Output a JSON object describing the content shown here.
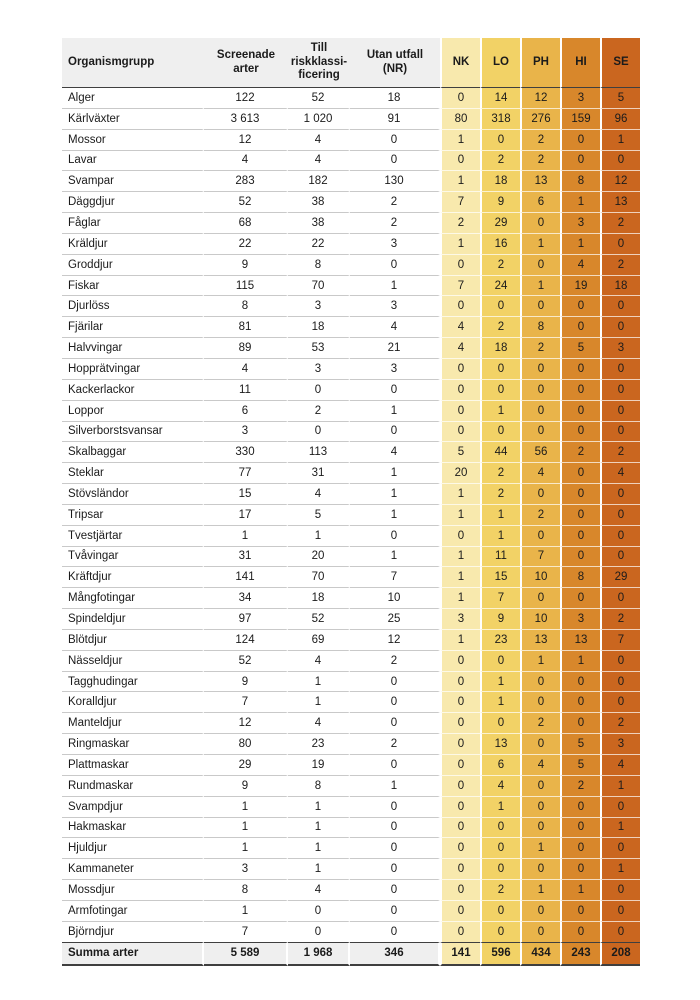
{
  "chart_data": {
    "type": "table",
    "columns": [
      {
        "key": "organismgrupp",
        "label": "Organismgrupp"
      },
      {
        "key": "screenade-arter",
        "label": "Screenade\narter"
      },
      {
        "key": "till-riskklassificering",
        "label": "Till\nriskklassi-\nficering"
      },
      {
        "key": "utan-utfall-nr",
        "label": "Utan utfall\n(NR)"
      },
      {
        "key": "nk",
        "label": "NK",
        "color": "#f8e9ad"
      },
      {
        "key": "lo",
        "label": "LO",
        "color": "#f2d266"
      },
      {
        "key": "ph",
        "label": "PH",
        "color": "#e9b44a"
      },
      {
        "key": "hi",
        "label": "HI",
        "color": "#d8872b"
      },
      {
        "key": "se",
        "label": "SE",
        "color": "#ca661f"
      }
    ],
    "rows": [
      [
        "Alger",
        "122",
        "52",
        "18",
        "0",
        "14",
        "12",
        "3",
        "5"
      ],
      [
        "Kärlväxter",
        "3 613",
        "1 020",
        "91",
        "80",
        "318",
        "276",
        "159",
        "96"
      ],
      [
        "Mossor",
        "12",
        "4",
        "0",
        "1",
        "0",
        "2",
        "0",
        "1"
      ],
      [
        "Lavar",
        "4",
        "4",
        "0",
        "0",
        "2",
        "2",
        "0",
        "0"
      ],
      [
        "Svampar",
        "283",
        "182",
        "130",
        "1",
        "18",
        "13",
        "8",
        "12"
      ],
      [
        "Däggdjur",
        "52",
        "38",
        "2",
        "7",
        "9",
        "6",
        "1",
        "13"
      ],
      [
        "Fåglar",
        "68",
        "38",
        "2",
        "2",
        "29",
        "0",
        "3",
        "2"
      ],
      [
        "Kräldjur",
        "22",
        "22",
        "3",
        "1",
        "16",
        "1",
        "1",
        "0"
      ],
      [
        "Groddjur",
        "9",
        "8",
        "0",
        "0",
        "2",
        "0",
        "4",
        "2"
      ],
      [
        "Fiskar",
        "115",
        "70",
        "1",
        "7",
        "24",
        "1",
        "19",
        "18"
      ],
      [
        "Djurlöss",
        "8",
        "3",
        "3",
        "0",
        "0",
        "0",
        "0",
        "0"
      ],
      [
        "Fjärilar",
        "81",
        "18",
        "4",
        "4",
        "2",
        "8",
        "0",
        "0"
      ],
      [
        "Halvvingar",
        "89",
        "53",
        "21",
        "4",
        "18",
        "2",
        "5",
        "3"
      ],
      [
        "Hopprätvingar",
        "4",
        "3",
        "3",
        "0",
        "0",
        "0",
        "0",
        "0"
      ],
      [
        "Kackerlackor",
        "11",
        "0",
        "0",
        "0",
        "0",
        "0",
        "0",
        "0"
      ],
      [
        "Loppor",
        "6",
        "2",
        "1",
        "0",
        "1",
        "0",
        "0",
        "0"
      ],
      [
        "Silverborstsvansar",
        "3",
        "0",
        "0",
        "0",
        "0",
        "0",
        "0",
        "0"
      ],
      [
        "Skalbaggar",
        "330",
        "113",
        "4",
        "5",
        "44",
        "56",
        "2",
        "2"
      ],
      [
        "Steklar",
        "77",
        "31",
        "1",
        "20",
        "2",
        "4",
        "0",
        "4"
      ],
      [
        "Stövsländor",
        "15",
        "4",
        "1",
        "1",
        "2",
        "0",
        "0",
        "0"
      ],
      [
        "Tripsar",
        "17",
        "5",
        "1",
        "1",
        "1",
        "2",
        "0",
        "0"
      ],
      [
        "Tvestjärtar",
        "1",
        "1",
        "0",
        "0",
        "1",
        "0",
        "0",
        "0"
      ],
      [
        "Tvåvingar",
        "31",
        "20",
        "1",
        "1",
        "11",
        "7",
        "0",
        "0"
      ],
      [
        "Kräftdjur",
        "141",
        "70",
        "7",
        "1",
        "15",
        "10",
        "8",
        "29"
      ],
      [
        "Mångfotingar",
        "34",
        "18",
        "10",
        "1",
        "7",
        "0",
        "0",
        "0"
      ],
      [
        "Spindeldjur",
        "97",
        "52",
        "25",
        "3",
        "9",
        "10",
        "3",
        "2"
      ],
      [
        "Blötdjur",
        "124",
        "69",
        "12",
        "1",
        "23",
        "13",
        "13",
        "7"
      ],
      [
        "Nässeldjur",
        "52",
        "4",
        "2",
        "0",
        "0",
        "1",
        "1",
        "0"
      ],
      [
        "Tagghudingar",
        "9",
        "1",
        "0",
        "0",
        "1",
        "0",
        "0",
        "0"
      ],
      [
        "Koralldjur",
        "7",
        "1",
        "0",
        "0",
        "1",
        "0",
        "0",
        "0"
      ],
      [
        "Manteldjur",
        "12",
        "4",
        "0",
        "0",
        "0",
        "2",
        "0",
        "2"
      ],
      [
        "Ringmaskar",
        "80",
        "23",
        "2",
        "0",
        "13",
        "0",
        "5",
        "3"
      ],
      [
        "Plattmaskar",
        "29",
        "19",
        "0",
        "0",
        "6",
        "4",
        "5",
        "4"
      ],
      [
        "Rundmaskar",
        "9",
        "8",
        "1",
        "0",
        "4",
        "0",
        "2",
        "1"
      ],
      [
        "Svampdjur",
        "1",
        "1",
        "0",
        "0",
        "1",
        "0",
        "0",
        "0"
      ],
      [
        "Hakmaskar",
        "1",
        "1",
        "0",
        "0",
        "0",
        "0",
        "0",
        "1"
      ],
      [
        "Hjuldjur",
        "1",
        "1",
        "0",
        "0",
        "0",
        "1",
        "0",
        "0"
      ],
      [
        "Kammaneter",
        "3",
        "1",
        "0",
        "0",
        "0",
        "0",
        "0",
        "1"
      ],
      [
        "Mossdjur",
        "8",
        "4",
        "0",
        "0",
        "2",
        "1",
        "1",
        "0"
      ],
      [
        "Armfotingar",
        "1",
        "0",
        "0",
        "0",
        "0",
        "0",
        "0",
        "0"
      ],
      [
        "Björndjur",
        "7",
        "0",
        "0",
        "0",
        "0",
        "0",
        "0",
        "0"
      ]
    ],
    "summary_row": [
      "Summa arter",
      "5 589",
      "1 968",
      "346",
      "141",
      "596",
      "434",
      "243",
      "208"
    ],
    "layout_hints": {
      "grid": "light horizontal rules in white area; white gaps between colored columns",
      "header_background": "#efefef",
      "rule_color": "#c9c9c9",
      "dark_rule_color": "#3f3f3f"
    }
  }
}
